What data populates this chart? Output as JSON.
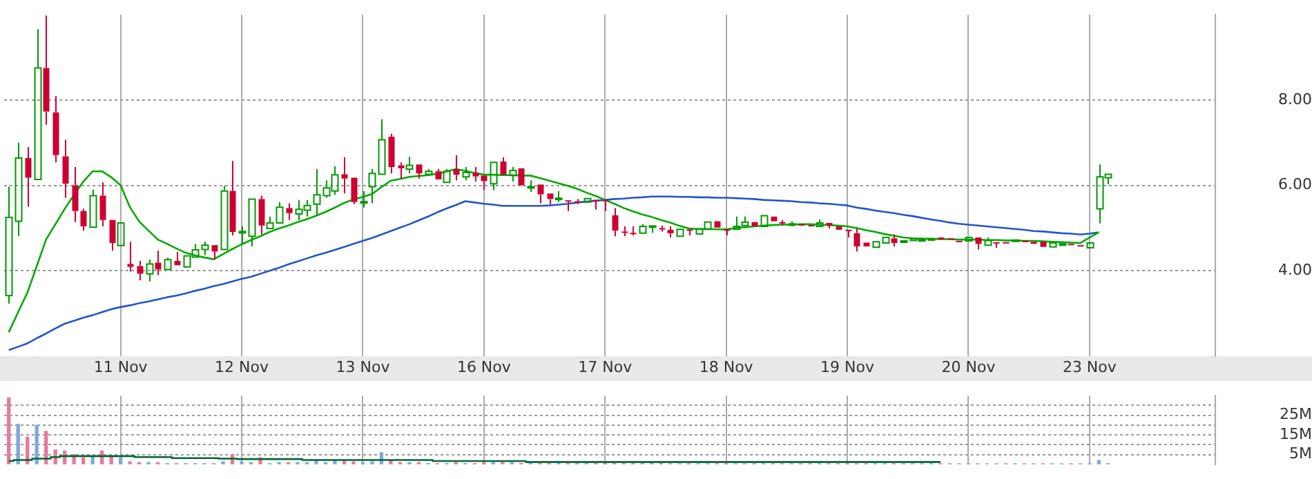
{
  "chart_data": [
    {
      "type": "candlestick",
      "categories": [
        null,
        null,
        null,
        null,
        null,
        null,
        null,
        null,
        null,
        null,
        null,
        null,
        "11 Nov",
        null,
        null,
        null,
        null,
        null,
        null,
        null,
        null,
        null,
        null,
        null,
        null,
        "12 Nov",
        null,
        null,
        null,
        null,
        null,
        null,
        null,
        null,
        null,
        null,
        null,
        null,
        "13 Nov",
        null,
        null,
        null,
        null,
        null,
        null,
        null,
        null,
        null,
        null,
        null,
        null,
        "16 Nov",
        null,
        null,
        null,
        null,
        null,
        null,
        null,
        null,
        null,
        null,
        null,
        null,
        "17 Nov",
        null,
        null,
        null,
        null,
        null,
        null,
        null,
        null,
        null,
        null,
        null,
        null,
        "18 Nov",
        null,
        null,
        null,
        null,
        null,
        null,
        null,
        null,
        null,
        null,
        null,
        null,
        "19 Nov",
        null,
        null,
        null,
        null,
        null,
        null,
        null,
        null,
        null,
        null,
        null,
        null,
        "20 Nov",
        null,
        null,
        null,
        null,
        null,
        null,
        null,
        null,
        null,
        null,
        null,
        null,
        "23 Nov",
        null,
        null,
        null,
        null,
        null,
        null,
        null,
        null,
        null,
        null,
        null,
        null,
        null
      ],
      "ohlc": [
        [
          3.42,
          5.97,
          3.23,
          5.25
        ],
        [
          5.16,
          7.0,
          4.81,
          6.64
        ],
        [
          6.64,
          6.9,
          5.5,
          6.18
        ],
        [
          6.14,
          9.66,
          6.12,
          8.75
        ],
        [
          8.75,
          9.98,
          7.42,
          7.73
        ],
        [
          7.71,
          8.09,
          6.54,
          6.71
        ],
        [
          6.68,
          7.07,
          5.71,
          6.04
        ],
        [
          6.0,
          6.43,
          5.14,
          5.4
        ],
        [
          5.4,
          5.45,
          4.94,
          5.04
        ],
        [
          5.02,
          5.9,
          4.99,
          5.76
        ],
        [
          5.76,
          6.07,
          5.04,
          5.19
        ],
        [
          5.19,
          5.22,
          4.47,
          4.65
        ],
        [
          4.59,
          5.15,
          4.57,
          5.12
        ],
        [
          4.16,
          4.68,
          3.98,
          4.09
        ],
        [
          4.11,
          4.23,
          3.78,
          3.93
        ],
        [
          3.93,
          4.26,
          3.75,
          4.16
        ],
        [
          4.19,
          4.47,
          3.9,
          4.03
        ],
        [
          4.03,
          4.31,
          4.0,
          4.26
        ],
        [
          4.23,
          4.44,
          4.09,
          4.13
        ],
        [
          4.09,
          4.37,
          4.06,
          4.35
        ],
        [
          4.32,
          4.63,
          4.28,
          4.49
        ],
        [
          4.5,
          4.68,
          4.37,
          4.6
        ],
        [
          4.6,
          4.6,
          4.26,
          4.45
        ],
        [
          4.5,
          5.99,
          4.47,
          5.87
        ],
        [
          5.87,
          6.57,
          4.83,
          4.91
        ],
        [
          4.9,
          5.04,
          4.63,
          4.92
        ],
        [
          4.81,
          5.68,
          4.57,
          5.68
        ],
        [
          5.68,
          5.76,
          4.85,
          5.06
        ],
        [
          4.99,
          5.27,
          4.96,
          5.12
        ],
        [
          5.12,
          5.61,
          5.09,
          5.49
        ],
        [
          5.47,
          5.58,
          5.19,
          5.35
        ],
        [
          5.33,
          5.66,
          5.19,
          5.44
        ],
        [
          5.42,
          5.66,
          5.27,
          5.53
        ],
        [
          5.56,
          6.38,
          5.3,
          5.78
        ],
        [
          5.76,
          6.12,
          5.71,
          5.94
        ],
        [
          5.87,
          6.45,
          5.78,
          6.25
        ],
        [
          6.26,
          6.66,
          5.81,
          6.16
        ],
        [
          6.18,
          6.18,
          5.56,
          5.61
        ],
        [
          5.6,
          5.87,
          5.48,
          5.62
        ],
        [
          5.97,
          6.38,
          5.58,
          6.28
        ],
        [
          6.26,
          7.55,
          6.23,
          7.07
        ],
        [
          7.14,
          7.21,
          6.28,
          6.43
        ],
        [
          6.47,
          6.54,
          6.16,
          6.4
        ],
        [
          6.38,
          6.67,
          6.28,
          6.47
        ],
        [
          6.49,
          6.49,
          6.16,
          6.28
        ],
        [
          6.26,
          6.38,
          6.22,
          6.33
        ],
        [
          6.33,
          6.38,
          6.1,
          6.14
        ],
        [
          6.07,
          6.38,
          6.07,
          6.33
        ],
        [
          6.38,
          6.71,
          6.12,
          6.25
        ],
        [
          6.2,
          6.43,
          6.12,
          6.3
        ],
        [
          6.3,
          6.43,
          6.09,
          6.21
        ],
        [
          6.23,
          6.23,
          5.89,
          6.1
        ],
        [
          6.04,
          6.54,
          5.89,
          6.54
        ],
        [
          6.56,
          6.66,
          6.23,
          6.25
        ],
        [
          6.23,
          6.43,
          6.09,
          6.35
        ],
        [
          6.4,
          6.4,
          5.99,
          6.0
        ],
        [
          5.96,
          6.12,
          5.85,
          5.97
        ],
        [
          6.02,
          6.02,
          5.58,
          5.79
        ],
        [
          5.81,
          5.81,
          5.56,
          5.68
        ],
        [
          5.69,
          5.87,
          5.61,
          5.7
        ],
        [
          5.65,
          5.65,
          5.4,
          5.64
        ],
        [
          5.63,
          5.68,
          5.56,
          5.62
        ],
        [
          5.61,
          5.71,
          5.58,
          5.69
        ],
        [
          5.66,
          5.66,
          5.43,
          5.65
        ],
        [
          5.66,
          5.66,
          5.4,
          5.63
        ],
        [
          5.3,
          5.47,
          4.81,
          4.94
        ],
        [
          4.92,
          5.04,
          4.81,
          4.91
        ],
        [
          4.89,
          5.04,
          4.83,
          4.88
        ],
        [
          4.88,
          5.09,
          4.85,
          5.04
        ],
        [
          5.04,
          5.09,
          4.89,
          5.05
        ],
        [
          5.0,
          5.06,
          4.92,
          4.99
        ],
        [
          4.96,
          5.04,
          4.78,
          4.88
        ],
        [
          4.81,
          4.97,
          4.81,
          4.97
        ],
        [
          4.97,
          4.99,
          4.83,
          4.96
        ],
        [
          4.86,
          4.99,
          4.83,
          4.97
        ],
        [
          4.97,
          5.14,
          4.94,
          5.14
        ],
        [
          5.16,
          5.19,
          5.01,
          5.01
        ],
        [
          4.97,
          4.99,
          4.83,
          4.96
        ],
        [
          4.97,
          5.27,
          4.94,
          5.04
        ],
        [
          5.06,
          5.27,
          5.04,
          5.14
        ],
        [
          5.14,
          5.14,
          5.01,
          5.04
        ],
        [
          5.04,
          5.29,
          5.04,
          5.29
        ],
        [
          5.27,
          5.27,
          5.14,
          5.16
        ],
        [
          5.14,
          5.19,
          5.06,
          5.13
        ],
        [
          5.09,
          5.16,
          5.04,
          5.1
        ],
        [
          5.09,
          5.09,
          5.04,
          5.08
        ],
        [
          5.07,
          5.09,
          5.02,
          5.06
        ],
        [
          5.04,
          5.2,
          5.04,
          5.12
        ],
        [
          5.12,
          5.16,
          4.99,
          5.06
        ],
        [
          5.04,
          5.04,
          4.92,
          4.96
        ],
        [
          4.96,
          4.96,
          4.78,
          4.94
        ],
        [
          4.88,
          4.99,
          4.45,
          4.57
        ],
        [
          4.66,
          4.68,
          4.54,
          4.57
        ],
        [
          4.55,
          4.68,
          4.55,
          4.68
        ],
        [
          4.65,
          4.81,
          4.63,
          4.78
        ],
        [
          4.76,
          4.85,
          4.57,
          4.65
        ],
        [
          4.69,
          4.73,
          4.65,
          4.7
        ],
        [
          4.71,
          4.76,
          4.69,
          4.75
        ],
        [
          4.72,
          4.78,
          4.7,
          4.73
        ],
        [
          4.74,
          4.78,
          4.71,
          4.75
        ],
        [
          4.78,
          4.78,
          4.7,
          4.73
        ],
        [
          4.76,
          4.76,
          4.71,
          4.73
        ],
        [
          4.7,
          4.73,
          4.68,
          4.69
        ],
        [
          4.7,
          4.78,
          4.68,
          4.78
        ],
        [
          4.78,
          4.78,
          4.5,
          4.63
        ],
        [
          4.6,
          4.78,
          4.58,
          4.71
        ],
        [
          4.67,
          4.67,
          4.54,
          4.66
        ],
        [
          4.67,
          4.67,
          4.63,
          4.65
        ],
        [
          4.71,
          4.75,
          4.67,
          4.72
        ],
        [
          4.71,
          4.73,
          4.65,
          4.67
        ],
        [
          4.68,
          4.7,
          4.61,
          4.63
        ],
        [
          4.68,
          4.68,
          4.52,
          4.56
        ],
        [
          4.56,
          4.65,
          4.56,
          4.65
        ],
        [
          4.62,
          4.67,
          4.58,
          4.63
        ],
        [
          4.63,
          4.66,
          4.58,
          4.6
        ],
        [
          4.6,
          4.63,
          4.57,
          4.59
        ],
        [
          4.54,
          4.68,
          4.52,
          4.65
        ],
        [
          5.45,
          6.49,
          5.11,
          6.2
        ],
        [
          6.18,
          6.26,
          6.02,
          6.26
        ],
        null,
        null,
        null,
        null,
        null,
        null,
        null,
        null,
        null,
        null,
        null
      ],
      "colors": [
        "#009900",
        "#009900",
        "#cc0033",
        "#009900",
        "#cc0033",
        "#cc0033",
        "#cc0033",
        "#cc0033",
        "#cc0033",
        "#009900",
        "#cc0033",
        "#cc0033",
        "#009900",
        "#cc0033",
        "#cc0033",
        "#009900",
        "#cc0033",
        "#009900",
        "#cc0033",
        "#009900",
        "#009900",
        "#009900",
        "#cc0033",
        "#009900",
        "#cc0033",
        "#009900",
        "#009900",
        "#cc0033",
        "#009900",
        "#009900",
        "#cc0033",
        "#009900",
        "#009900",
        "#009900",
        "#009900",
        "#009900",
        "#cc0033",
        "#cc0033",
        "#009900",
        "#009900",
        "#009900",
        "#cc0033",
        "#cc0033",
        "#009900",
        "#cc0033",
        "#009900",
        "#cc0033",
        "#009900",
        "#cc0033",
        "#009900",
        "#cc0033",
        "#cc0033",
        "#009900",
        "#cc0033",
        "#009900",
        "#cc0033",
        "#009900",
        "#cc0033",
        "#cc0033",
        "#009900",
        "#cc0033",
        "#cc0033",
        "#009900",
        "#cc0033",
        "#cc0033",
        "#cc0033",
        "#cc0033",
        "#cc0033",
        "#009900",
        "#009900",
        "#cc0033",
        "#cc0033",
        "#009900",
        "#cc0033",
        "#009900",
        "#009900",
        "#cc0033",
        "#cc0033",
        "#009900",
        "#009900",
        "#cc0033",
        "#009900",
        "#cc0033",
        "#cc0033",
        "#009900",
        "#cc0033",
        "#cc0033",
        "#009900",
        "#cc0033",
        "#cc0033",
        "#cc0033",
        "#cc0033",
        "#cc0033",
        "#009900",
        "#009900",
        "#cc0033",
        "#009900",
        "#009900",
        "#009900",
        "#009900",
        "#cc0033",
        "#cc0033",
        "#cc0033",
        "#009900",
        "#cc0033",
        "#009900",
        "#cc0033",
        "#cc0033",
        "#009900",
        "#cc0033",
        "#cc0033",
        "#cc0033",
        "#009900",
        "#009900",
        "#cc0033",
        "#cc0033",
        "#009900",
        "#009900",
        "#009900",
        null,
        null,
        null,
        null,
        null,
        null,
        null,
        null,
        null,
        null,
        null
      ],
      "series": [
        {
          "type": "line",
          "color": "#00aa00",
          "values": [
            2.56,
            3.03,
            3.49,
            4.11,
            4.73,
            5.09,
            5.45,
            5.78,
            6.09,
            6.33,
            6.33,
            6.19,
            6.0,
            5.49,
            5.15,
            4.94,
            4.73,
            4.63,
            4.52,
            4.42,
            4.36,
            4.31,
            4.27,
            4.39,
            4.51,
            4.62,
            4.72,
            4.81,
            4.91,
            4.99,
            5.06,
            5.14,
            5.21,
            5.29,
            5.38,
            5.48,
            5.59,
            5.67,
            5.73,
            5.8,
            5.96,
            6.11,
            6.15,
            6.2,
            6.22,
            6.24,
            6.27,
            6.33,
            6.38,
            6.34,
            6.29,
            6.25,
            6.25,
            6.24,
            6.24,
            6.23,
            6.23,
            6.17,
            6.11,
            6.05,
            5.99,
            5.92,
            5.83,
            5.75,
            5.66,
            5.57,
            5.47,
            5.39,
            5.32,
            5.26,
            5.19,
            5.13,
            5.05,
            4.99,
            4.98,
            4.98,
            4.97,
            4.97,
            5.0,
            5.02,
            5.04,
            5.06,
            5.07,
            5.08,
            5.08,
            5.09,
            5.09,
            5.08,
            5.07,
            5.06,
            5.04,
            5.0,
            4.95,
            4.91,
            4.86,
            4.82,
            4.78,
            4.76,
            4.75,
            4.75,
            4.74,
            4.74,
            4.73,
            4.73,
            4.73,
            4.72,
            4.72,
            4.71,
            4.71,
            4.7,
            4.7,
            4.69,
            4.68,
            4.67,
            4.66,
            4.65,
            4.78,
            4.9,
            null,
            null,
            null,
            null,
            null,
            null,
            null,
            null,
            null,
            null,
            null,
            null
          ]
        },
        {
          "type": "line",
          "color": "#2255cc",
          "values": [
            2.14,
            2.22,
            2.3,
            2.42,
            2.53,
            2.65,
            2.76,
            2.83,
            2.9,
            2.96,
            3.03,
            3.1,
            3.15,
            3.19,
            3.24,
            3.28,
            3.33,
            3.38,
            3.42,
            3.47,
            3.53,
            3.58,
            3.64,
            3.69,
            3.75,
            3.81,
            3.86,
            3.93,
            4.0,
            4.07,
            4.15,
            4.22,
            4.29,
            4.36,
            4.42,
            4.49,
            4.56,
            4.63,
            4.7,
            4.77,
            4.85,
            4.93,
            5.01,
            5.09,
            5.18,
            5.27,
            5.37,
            5.46,
            5.54,
            5.63,
            5.6,
            5.57,
            5.55,
            5.52,
            5.52,
            5.52,
            5.52,
            5.52,
            5.53,
            5.55,
            5.57,
            5.6,
            5.62,
            5.64,
            5.66,
            5.68,
            5.69,
            5.71,
            5.72,
            5.74,
            5.74,
            5.74,
            5.73,
            5.73,
            5.72,
            5.72,
            5.71,
            5.71,
            5.7,
            5.69,
            5.68,
            5.66,
            5.65,
            5.64,
            5.63,
            5.61,
            5.6,
            5.58,
            5.57,
            5.55,
            5.53,
            5.48,
            5.45,
            5.41,
            5.38,
            5.35,
            5.31,
            5.28,
            5.24,
            5.2,
            5.17,
            5.13,
            5.1,
            5.08,
            5.06,
            5.04,
            5.02,
            5.0,
            4.98,
            4.96,
            4.93,
            4.92,
            4.9,
            4.88,
            4.87,
            4.85,
            4.87,
            4.9,
            null,
            null,
            null,
            null,
            null,
            null,
            null,
            null,
            null,
            null,
            null,
            null
          ]
        }
      ],
      "ylim": [
        2,
        10
      ],
      "yticks": [
        {
          "value": 4,
          "label": "4.00"
        },
        {
          "value": 6,
          "label": "6.00"
        },
        {
          "value": 8,
          "label": "8.00"
        }
      ],
      "grid": true
    },
    {
      "type": "bar",
      "categories": [
        null,
        null,
        null,
        null,
        null,
        null,
        null,
        null,
        null,
        null,
        null,
        null,
        null,
        null,
        null,
        null,
        null,
        null,
        null,
        null,
        null,
        null,
        null,
        null,
        null,
        null,
        null,
        null,
        null,
        null,
        null,
        null,
        null,
        null,
        null,
        null,
        null,
        null,
        null,
        null,
        null,
        null,
        null,
        null,
        null,
        null,
        null,
        null,
        null,
        null,
        null,
        null,
        null,
        null,
        null,
        null,
        null,
        null,
        null,
        null,
        null,
        null,
        null,
        null,
        null,
        null,
        null,
        null,
        null,
        null,
        null,
        null,
        null,
        null,
        null,
        null,
        null,
        null,
        null,
        null,
        null,
        null,
        null,
        null,
        null,
        null,
        null,
        null,
        null,
        null,
        null,
        null,
        null,
        null,
        null,
        null,
        null,
        null,
        null,
        null,
        null,
        null,
        null,
        null,
        null,
        null,
        null,
        null,
        null,
        null,
        null,
        null,
        null,
        null,
        null,
        null,
        null,
        null,
        null,
        null,
        null,
        null,
        null,
        null,
        null,
        null,
        null,
        null,
        null,
        null
      ],
      "series": [
        {
          "values": [
            33.8,
            20.3,
            13.8,
            19.9,
            16.8,
            7.3,
            6.8,
            5.0,
            3.3,
            4.2,
            6.8,
            4.2,
            3.3,
            1.3,
            0.9,
            0.9,
            0.9,
            0.4,
            0.4,
            0.4,
            0.4,
            0.4,
            0.4,
            1.3,
            5.0,
            1.3,
            0.9,
            3.3,
            0.4,
            0.9,
            0.9,
            0.9,
            0.9,
            2.2,
            0.9,
            2.2,
            2.2,
            1.3,
            0.9,
            1.3,
            5.9,
            2.2,
            0.9,
            0.9,
            0.9,
            0.4,
            0.4,
            0.4,
            0.9,
            0.4,
            0.4,
            0.9,
            0.9,
            0.9,
            0.9,
            0.5,
            0.5,
            0.5,
            0.5,
            0.5,
            0.5,
            0.5,
            0.5,
            0.5,
            0.5,
            0.5,
            0.5,
            0.5,
            0.5,
            0.5,
            0.5,
            0.3,
            0.3,
            0.3,
            0.3,
            0.3,
            0.3,
            0.3,
            0.3,
            0.3,
            0.3,
            0.3,
            0.3,
            0.3,
            0.3,
            0.3,
            0.3,
            0.3,
            0.3,
            0.3,
            0.3,
            0.3,
            0.3,
            0.3,
            0.3,
            0.3,
            0.3,
            0.3,
            0.3,
            0.3,
            0.3,
            0.3,
            0.3,
            0.3,
            0.3,
            0.3,
            0.3,
            0.3,
            0.3,
            0.3,
            0.3,
            0.3,
            0.3,
            0.3,
            0.3,
            0.3,
            0.3,
            2.0,
            0.4,
            null,
            null,
            null,
            null,
            null,
            null,
            null,
            null,
            null,
            null,
            null
          ],
          "colors": [
            "#e8799a",
            "#7fa8d8",
            "#e8799a",
            "#7fa8d8",
            "#e8799a",
            "#e8799a",
            "#e8799a",
            "#e8799a",
            "#e8799a",
            "#7fa8d8",
            "#e8799a",
            "#e8799a",
            "#7fa8d8",
            "#e8799a",
            "#e8799a",
            "#7fa8d8",
            "#e8799a",
            "#7fa8d8",
            "#e8799a",
            "#7fa8d8",
            "#7fa8d8",
            "#7fa8d8",
            "#e8799a",
            "#7fa8d8",
            "#e8799a",
            "#7fa8d8",
            "#7fa8d8",
            "#e8799a",
            "#7fa8d8",
            "#7fa8d8",
            "#e8799a",
            "#7fa8d8",
            "#7fa8d8",
            "#7fa8d8",
            "#7fa8d8",
            "#7fa8d8",
            "#e8799a",
            "#e8799a",
            "#7fa8d8",
            "#7fa8d8",
            "#7fa8d8",
            "#e8799a",
            "#e8799a",
            "#7fa8d8",
            "#e8799a",
            "#7fa8d8",
            "#e8799a",
            "#7fa8d8",
            "#e8799a",
            "#7fa8d8",
            "#e8799a",
            "#e8799a",
            "#7fa8d8",
            "#e8799a",
            "#7fa8d8",
            "#e8799a",
            "#7fa8d8",
            "#e8799a",
            "#e8799a",
            "#7fa8d8",
            "#e8799a",
            "#e8799a",
            "#7fa8d8",
            "#e8799a",
            "#e8799a",
            "#e8799a",
            "#e8799a",
            "#e8799a",
            "#7fa8d8",
            "#7fa8d8",
            "#e8799a",
            "#e8799a",
            "#7fa8d8",
            "#e8799a",
            "#7fa8d8",
            "#7fa8d8",
            "#e8799a",
            "#e8799a",
            "#7fa8d8",
            "#7fa8d8",
            "#e8799a",
            "#7fa8d8",
            "#e8799a",
            "#e8799a",
            "#7fa8d8",
            "#e8799a",
            "#e8799a",
            "#7fa8d8",
            "#e8799a",
            "#e8799a",
            "#e8799a",
            "#e8799a",
            "#e8799a",
            "#7fa8d8",
            "#7fa8d8",
            "#e8799a",
            "#7fa8d8",
            "#7fa8d8",
            "#7fa8d8",
            "#7fa8d8",
            "#e8799a",
            "#e8799a",
            "#e8799a",
            "#7fa8d8",
            "#e8799a",
            "#7fa8d8",
            "#e8799a",
            "#e8799a",
            "#7fa8d8",
            "#e8799a",
            "#e8799a",
            "#e8799a",
            "#7fa8d8",
            "#7fa8d8",
            "#e8799a",
            "#e8799a",
            "#7fa8d8",
            "#7fa8d8",
            "#7fa8d8",
            null,
            null,
            null,
            null,
            null,
            null,
            null,
            null,
            null,
            null,
            null
          ]
        },
        {
          "type": "step",
          "color": "#006633",
          "values": [
            1.7,
            2.2,
            2.2,
            2.9,
            2.9,
            3.7,
            4.2,
            4.2,
            4.2,
            4.2,
            4.2,
            4.2,
            4.2,
            4.2,
            3.7,
            3.7,
            3.7,
            3.7,
            3.2,
            3.2,
            3.2,
            3.2,
            3.2,
            2.9,
            2.9,
            2.7,
            2.7,
            2.7,
            2.7,
            2.7,
            2.7,
            2.7,
            2.2,
            2.2,
            2.2,
            2.2,
            2.2,
            2.2,
            2.2,
            2.2,
            2.2,
            2.2,
            2.2,
            2.2,
            2.2,
            2.2,
            1.7,
            1.7,
            1.7,
            1.7,
            1.7,
            1.7,
            1.7,
            1.7,
            1.7,
            1.7,
            1.2,
            1.2,
            1.2,
            1.2,
            1.2,
            1.2,
            1.2,
            1.2,
            1.2,
            1.2,
            1.2,
            1.2,
            1.2,
            1.2,
            1.2,
            1.2,
            1.2,
            1.2,
            1.2,
            1.2,
            1.2,
            1.2,
            1.2,
            1.2,
            1.2,
            1.2,
            1.2,
            1.2,
            1.2,
            1.2,
            1.2,
            1.2,
            1.2,
            1.2,
            1.2,
            1.2,
            1.2,
            1.2,
            1.2,
            1.2,
            1.2,
            1.2,
            1.2,
            1.2,
            1.2,
            null,
            null,
            null,
            null,
            null,
            null,
            null,
            null,
            null,
            null,
            null,
            null,
            null,
            null,
            null,
            null,
            null,
            null,
            null,
            null,
            null,
            null,
            null,
            null,
            null,
            null,
            null,
            null,
            null
          ]
        }
      ],
      "ylim": [
        0,
        35
      ],
      "yticks": [
        {
          "value": 5,
          "label": "5M"
        },
        {
          "value": 10,
          "label": null
        },
        {
          "value": 15,
          "label": "15M"
        },
        {
          "value": 20,
          "label": null
        },
        {
          "value": 25,
          "label": "25M"
        },
        {
          "value": 30,
          "label": null
        }
      ],
      "tick_labels": "y",
      "grid": true
    }
  ]
}
